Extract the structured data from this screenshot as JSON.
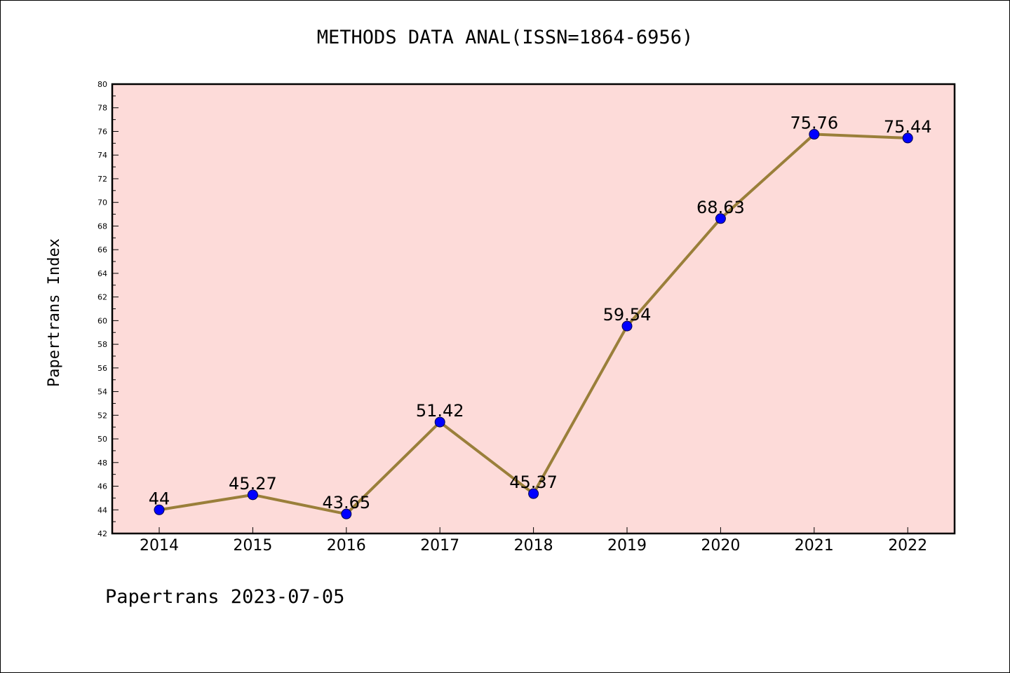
{
  "chart_data": {
    "type": "line",
    "title": "METHODS DATA ANAL(ISSN=1864-6956)",
    "xlabel": "",
    "ylabel": "Papertrans Index",
    "categories": [
      "2014",
      "2015",
      "2016",
      "2017",
      "2018",
      "2019",
      "2020",
      "2021",
      "2022"
    ],
    "series": [
      {
        "values": [
          44,
          45.27,
          43.65,
          51.42,
          45.37,
          59.54,
          68.63,
          75.76,
          75.44
        ],
        "labels": [
          "44",
          "45.27",
          "43.65",
          "51.42",
          "45.37",
          "59.54",
          "68.63",
          "75.76",
          "75.44"
        ],
        "line_color": "#9a7f3a",
        "marker_color": "#0000ff"
      }
    ],
    "ylim": [
      42,
      80
    ],
    "yticks": [
      "42",
      "44",
      "46",
      "48",
      "50",
      "52",
      "54",
      "56",
      "58",
      "60",
      "62",
      "64",
      "66",
      "68",
      "70",
      "72",
      "74",
      "76",
      "78",
      "80"
    ],
    "background_color": "#fddbd9",
    "grid": false,
    "legend": "none"
  },
  "footer": "Papertrans 2023-07-05"
}
